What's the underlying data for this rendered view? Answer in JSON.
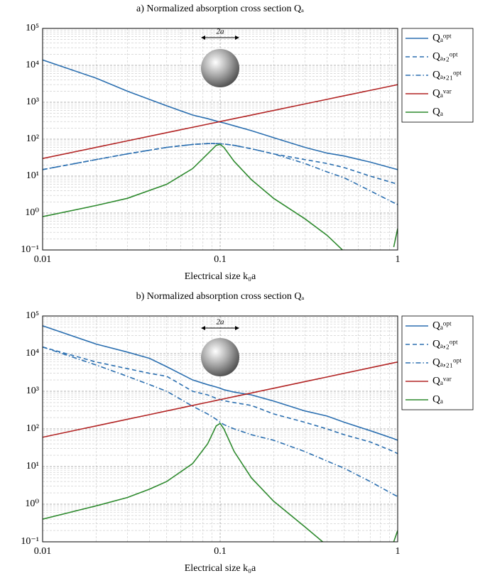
{
  "chart_data": [
    {
      "type": "line",
      "title": "a) Normalized absorption cross section Qₐ",
      "xlabel": "Electrical size k₀a",
      "annotation": "2a",
      "xscale": "log",
      "yscale": "log",
      "grid": true,
      "legend": "outside-right",
      "xlim": [
        0.01,
        1
      ],
      "ylim": [
        0.1,
        100000
      ],
      "xticks": [
        0.01,
        0.1,
        1
      ],
      "yticks": [
        {
          "value": 0.1,
          "label": "10⁻¹"
        },
        {
          "value": 1,
          "label": "10⁰"
        },
        {
          "value": 10,
          "label": "10¹"
        },
        {
          "value": 100,
          "label": "10²"
        },
        {
          "value": 1000,
          "label": "10³"
        },
        {
          "value": 10000,
          "label": "10⁴"
        },
        {
          "value": 100000,
          "label": "10⁵"
        }
      ],
      "x": [
        0.01,
        0.02,
        0.03,
        0.05,
        0.07,
        0.085,
        0.095,
        0.1,
        0.105,
        0.12,
        0.15,
        0.2,
        0.3,
        0.4,
        0.5,
        0.7,
        0.95,
        1
      ],
      "series": [
        {
          "name": "Qₐᵒᵖᵗ",
          "color": "#2b6fb0",
          "dash": "solid",
          "values": [
            14000,
            4500,
            2000,
            800,
            450,
            360,
            310,
            290,
            275,
            230,
            170,
            110,
            60,
            42,
            35,
            24,
            16,
            15
          ]
        },
        {
          "name": "Qₐ,₂ᵒᵖᵗ",
          "color": "#2b6fb0",
          "dash": "dashed",
          "values": [
            15,
            28,
            40,
            60,
            72,
            76,
            76,
            75,
            74,
            68,
            55,
            40,
            28,
            22,
            17,
            10,
            6.5,
            6
          ]
        },
        {
          "name": "Qₐ,₂₁ᵒᵖᵗ",
          "color": "#2b6fb0",
          "dash": "dashdot",
          "values": [
            15,
            28,
            40,
            60,
            72,
            76,
            76,
            75,
            74,
            68,
            55,
            40,
            22,
            13,
            9,
            4,
            1.9,
            1.7
          ]
        },
        {
          "name": "Qₐᵛᵃʳ",
          "color": "#b22424",
          "dash": "solid",
          "values": [
            30,
            60,
            90,
            150,
            210,
            255,
            285,
            300,
            315,
            360,
            450,
            600,
            900,
            1200,
            1500,
            2100,
            2850,
            3000
          ]
        },
        {
          "name": "Qₐ",
          "color": "#2e8a2e",
          "dash": "solid",
          "values": [
            0.8,
            1.6,
            2.5,
            6,
            16,
            40,
            68,
            72,
            60,
            25,
            8,
            2.5,
            0.7,
            0.25,
            0.09,
            null,
            0.12,
            0.38
          ]
        }
      ]
    },
    {
      "type": "line",
      "title": "b) Normalized absorption cross section Qₐ",
      "xlabel": "Electrical size k₀a",
      "annotation": "2a",
      "xscale": "log",
      "yscale": "log",
      "grid": true,
      "legend": "outside-right",
      "xlim": [
        0.01,
        1
      ],
      "ylim": [
        0.1,
        100000
      ],
      "xticks": [
        0.01,
        0.1,
        1
      ],
      "yticks": [
        {
          "value": 0.1,
          "label": "10⁻¹"
        },
        {
          "value": 1,
          "label": "10⁰"
        },
        {
          "value": 10,
          "label": "10¹"
        },
        {
          "value": 100,
          "label": "10²"
        },
        {
          "value": 1000,
          "label": "10³"
        },
        {
          "value": 10000,
          "label": "10⁴"
        },
        {
          "value": 100000,
          "label": "10⁵"
        }
      ],
      "x": [
        0.01,
        0.02,
        0.03,
        0.04,
        0.05,
        0.07,
        0.085,
        0.095,
        0.1,
        0.105,
        0.12,
        0.15,
        0.2,
        0.3,
        0.4,
        0.5,
        0.7,
        0.95,
        1
      ],
      "series": [
        {
          "name": "Qₐᵒᵖᵗ",
          "color": "#2b6fb0",
          "dash": "solid",
          "values": [
            55000,
            18000,
            11000,
            7500,
            4500,
            2000,
            1500,
            1300,
            1200,
            1100,
            950,
            800,
            550,
            300,
            220,
            150,
            90,
            55,
            50
          ]
        },
        {
          "name": "Qₐ,₂ᵒᵖᵗ",
          "color": "#2b6fb0",
          "dash": "dashed",
          "values": [
            15000,
            6000,
            4000,
            3000,
            2500,
            1000,
            800,
            650,
            600,
            560,
            500,
            420,
            250,
            150,
            100,
            70,
            45,
            25,
            22
          ]
        },
        {
          "name": "Qₐ,₂₁ᵒᵖᵗ",
          "color": "#2b6fb0",
          "dash": "dashdot",
          "values": [
            15000,
            5000,
            2500,
            1500,
            1000,
            400,
            250,
            180,
            150,
            130,
            100,
            70,
            50,
            25,
            14,
            9,
            4,
            1.8,
            1.6
          ]
        },
        {
          "name": "Qₐᵛᵃʳ",
          "color": "#b22424",
          "dash": "solid",
          "values": [
            60,
            120,
            180,
            240,
            300,
            420,
            510,
            570,
            600,
            630,
            720,
            900,
            1200,
            1800,
            2400,
            3000,
            4200,
            5700,
            6000
          ]
        },
        {
          "name": "Qₐ",
          "color": "#2e8a2e",
          "dash": "solid",
          "values": [
            0.4,
            0.9,
            1.5,
            2.5,
            4,
            12,
            40,
            120,
            140,
            100,
            25,
            5,
            1.2,
            0.25,
            0.08,
            null,
            null,
            0.1,
            0.2
          ]
        }
      ]
    }
  ]
}
